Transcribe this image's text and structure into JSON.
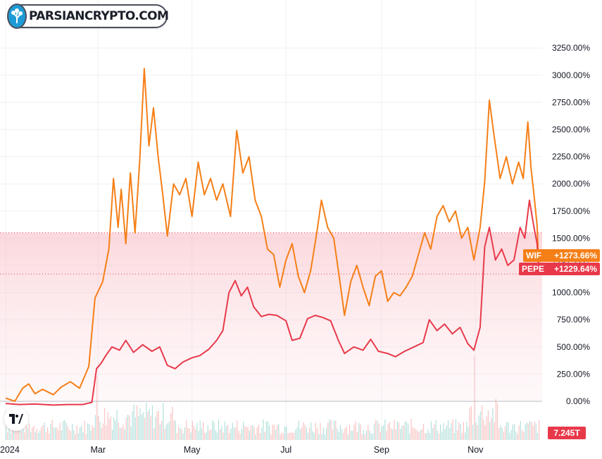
{
  "watermark": {
    "brand_text": "PARSIANCRYPTO.COM"
  },
  "chart_data": {
    "type": "line",
    "ylim": [
      -50,
      3400
    ],
    "y_tick_labels": [
      "0.00%",
      "250.00%",
      "500.00%",
      "750.00%",
      "1000.00%",
      "1250.00%",
      "1500.00%",
      "1750.00%",
      "2000.00%",
      "2250.00%",
      "2500.00%",
      "2750.00%",
      "3000.00%",
      "3250.00%"
    ],
    "y_ticks": [
      0,
      250,
      500,
      750,
      1000,
      1250,
      1500,
      1750,
      2000,
      2250,
      2500,
      2750,
      3000,
      3250
    ],
    "x_tick_labels": [
      "2024",
      "Mar",
      "May",
      "Jul",
      "Sep",
      "Nov"
    ],
    "x_ticks": [
      "2024-01-01",
      "2024-03-01",
      "2024-05-01",
      "2024-07-01",
      "2024-09-01",
      "2024-11-01"
    ],
    "x_range": [
      "2024-01-01",
      "2024-12-12"
    ],
    "series": [
      {
        "name": "WIF",
        "color": "#f57f17",
        "last_value_label": "+1273.66%",
        "points": [
          [
            "2024-01-01",
            30
          ],
          [
            "2024-01-07",
            0
          ],
          [
            "2024-01-12",
            120
          ],
          [
            "2024-01-16",
            160
          ],
          [
            "2024-01-20",
            70
          ],
          [
            "2024-01-25",
            110
          ],
          [
            "2024-02-01",
            60
          ],
          [
            "2024-02-06",
            130
          ],
          [
            "2024-02-12",
            180
          ],
          [
            "2024-02-18",
            120
          ],
          [
            "2024-02-24",
            320
          ],
          [
            "2024-02-28",
            950
          ],
          [
            "2024-03-04",
            1100
          ],
          [
            "2024-03-08",
            1400
          ],
          [
            "2024-03-11",
            2050
          ],
          [
            "2024-03-14",
            1600
          ],
          [
            "2024-03-16",
            1950
          ],
          [
            "2024-03-19",
            1450
          ],
          [
            "2024-03-22",
            2100
          ],
          [
            "2024-03-25",
            1550
          ],
          [
            "2024-03-28",
            2200
          ],
          [
            "2024-03-31",
            3060
          ],
          [
            "2024-04-03",
            2350
          ],
          [
            "2024-04-06",
            2700
          ],
          [
            "2024-04-09",
            2250
          ],
          [
            "2024-04-12",
            1900
          ],
          [
            "2024-04-15",
            1520
          ],
          [
            "2024-04-19",
            2000
          ],
          [
            "2024-04-23",
            1900
          ],
          [
            "2024-04-27",
            2050
          ],
          [
            "2024-05-01",
            1700
          ],
          [
            "2024-05-05",
            2200
          ],
          [
            "2024-05-09",
            1900
          ],
          [
            "2024-05-13",
            2050
          ],
          [
            "2024-05-17",
            1850
          ],
          [
            "2024-05-21",
            2000
          ],
          [
            "2024-05-26",
            1700
          ],
          [
            "2024-05-30",
            2490
          ],
          [
            "2024-06-03",
            2100
          ],
          [
            "2024-06-07",
            2250
          ],
          [
            "2024-06-11",
            1850
          ],
          [
            "2024-06-15",
            1700
          ],
          [
            "2024-06-19",
            1400
          ],
          [
            "2024-06-23",
            1350
          ],
          [
            "2024-06-27",
            1050
          ],
          [
            "2024-07-01",
            1300
          ],
          [
            "2024-07-05",
            1450
          ],
          [
            "2024-07-09",
            1150
          ],
          [
            "2024-07-13",
            1000
          ],
          [
            "2024-07-17",
            1200
          ],
          [
            "2024-07-21",
            1550
          ],
          [
            "2024-07-24",
            1850
          ],
          [
            "2024-07-28",
            1600
          ],
          [
            "2024-08-01",
            1500
          ],
          [
            "2024-08-05",
            1100
          ],
          [
            "2024-08-08",
            790
          ],
          [
            "2024-08-12",
            1100
          ],
          [
            "2024-08-16",
            1250
          ],
          [
            "2024-08-20",
            1050
          ],
          [
            "2024-08-24",
            880
          ],
          [
            "2024-08-28",
            1150
          ],
          [
            "2024-09-01",
            1200
          ],
          [
            "2024-09-05",
            920
          ],
          [
            "2024-09-09",
            1000
          ],
          [
            "2024-09-13",
            970
          ],
          [
            "2024-09-17",
            1050
          ],
          [
            "2024-09-21",
            1150
          ],
          [
            "2024-09-25",
            1350
          ],
          [
            "2024-09-29",
            1550
          ],
          [
            "2024-10-03",
            1400
          ],
          [
            "2024-10-07",
            1700
          ],
          [
            "2024-10-11",
            1800
          ],
          [
            "2024-10-15",
            1650
          ],
          [
            "2024-10-19",
            1750
          ],
          [
            "2024-10-23",
            1500
          ],
          [
            "2024-10-27",
            1600
          ],
          [
            "2024-10-31",
            1300
          ],
          [
            "2024-11-04",
            1600
          ],
          [
            "2024-11-07",
            2020
          ],
          [
            "2024-11-10",
            2770
          ],
          [
            "2024-11-13",
            2450
          ],
          [
            "2024-11-17",
            2050
          ],
          [
            "2024-11-21",
            2250
          ],
          [
            "2024-11-25",
            2000
          ],
          [
            "2024-11-29",
            2200
          ],
          [
            "2024-12-02",
            2050
          ],
          [
            "2024-12-05",
            2570
          ],
          [
            "2024-12-07",
            2150
          ],
          [
            "2024-12-09",
            1900
          ],
          [
            "2024-12-11",
            1620
          ],
          [
            "2024-12-12",
            1273.66
          ]
        ]
      },
      {
        "name": "PEPE",
        "color": "#e8394a",
        "last_value_label": "+1229.64%",
        "points": [
          [
            "2024-01-01",
            -20
          ],
          [
            "2024-01-10",
            -30
          ],
          [
            "2024-01-20",
            -25
          ],
          [
            "2024-02-01",
            -35
          ],
          [
            "2024-02-10",
            -30
          ],
          [
            "2024-02-20",
            -30
          ],
          [
            "2024-02-26",
            -10
          ],
          [
            "2024-02-29",
            300
          ],
          [
            "2024-03-03",
            350
          ],
          [
            "2024-03-06",
            420
          ],
          [
            "2024-03-10",
            500
          ],
          [
            "2024-03-15",
            470
          ],
          [
            "2024-03-19",
            560
          ],
          [
            "2024-03-24",
            450
          ],
          [
            "2024-03-30",
            520
          ],
          [
            "2024-04-05",
            460
          ],
          [
            "2024-04-10",
            500
          ],
          [
            "2024-04-15",
            330
          ],
          [
            "2024-04-20",
            300
          ],
          [
            "2024-04-25",
            360
          ],
          [
            "2024-05-01",
            400
          ],
          [
            "2024-05-06",
            420
          ],
          [
            "2024-05-12",
            480
          ],
          [
            "2024-05-17",
            560
          ],
          [
            "2024-05-21",
            650
          ],
          [
            "2024-05-25",
            1000
          ],
          [
            "2024-05-29",
            1110
          ],
          [
            "2024-06-02",
            970
          ],
          [
            "2024-06-06",
            1050
          ],
          [
            "2024-06-10",
            870
          ],
          [
            "2024-06-15",
            780
          ],
          [
            "2024-06-20",
            800
          ],
          [
            "2024-06-25",
            790
          ],
          [
            "2024-07-01",
            740
          ],
          [
            "2024-07-05",
            560
          ],
          [
            "2024-07-10",
            580
          ],
          [
            "2024-07-15",
            760
          ],
          [
            "2024-07-20",
            790
          ],
          [
            "2024-07-25",
            770
          ],
          [
            "2024-07-30",
            740
          ],
          [
            "2024-08-04",
            560
          ],
          [
            "2024-08-08",
            440
          ],
          [
            "2024-08-14",
            500
          ],
          [
            "2024-08-20",
            470
          ],
          [
            "2024-08-25",
            570
          ],
          [
            "2024-08-30",
            460
          ],
          [
            "2024-09-05",
            440
          ],
          [
            "2024-09-10",
            410
          ],
          [
            "2024-09-16",
            460
          ],
          [
            "2024-09-22",
            500
          ],
          [
            "2024-09-28",
            540
          ],
          [
            "2024-10-02",
            750
          ],
          [
            "2024-10-07",
            650
          ],
          [
            "2024-10-12",
            710
          ],
          [
            "2024-10-17",
            620
          ],
          [
            "2024-10-22",
            680
          ],
          [
            "2024-10-27",
            530
          ],
          [
            "2024-10-31",
            470
          ],
          [
            "2024-11-04",
            680
          ],
          [
            "2024-11-07",
            1420
          ],
          [
            "2024-11-10",
            1600
          ],
          [
            "2024-11-14",
            1300
          ],
          [
            "2024-11-18",
            1400
          ],
          [
            "2024-11-22",
            1250
          ],
          [
            "2024-11-26",
            1300
          ],
          [
            "2024-11-30",
            1600
          ],
          [
            "2024-12-03",
            1500
          ],
          [
            "2024-12-06",
            1850
          ],
          [
            "2024-12-09",
            1600
          ],
          [
            "2024-12-11",
            1450
          ],
          [
            "2024-12-12",
            1229.64
          ]
        ]
      }
    ],
    "volume": {
      "last_value_label": "7.245T",
      "color": "#e8394a"
    }
  }
}
